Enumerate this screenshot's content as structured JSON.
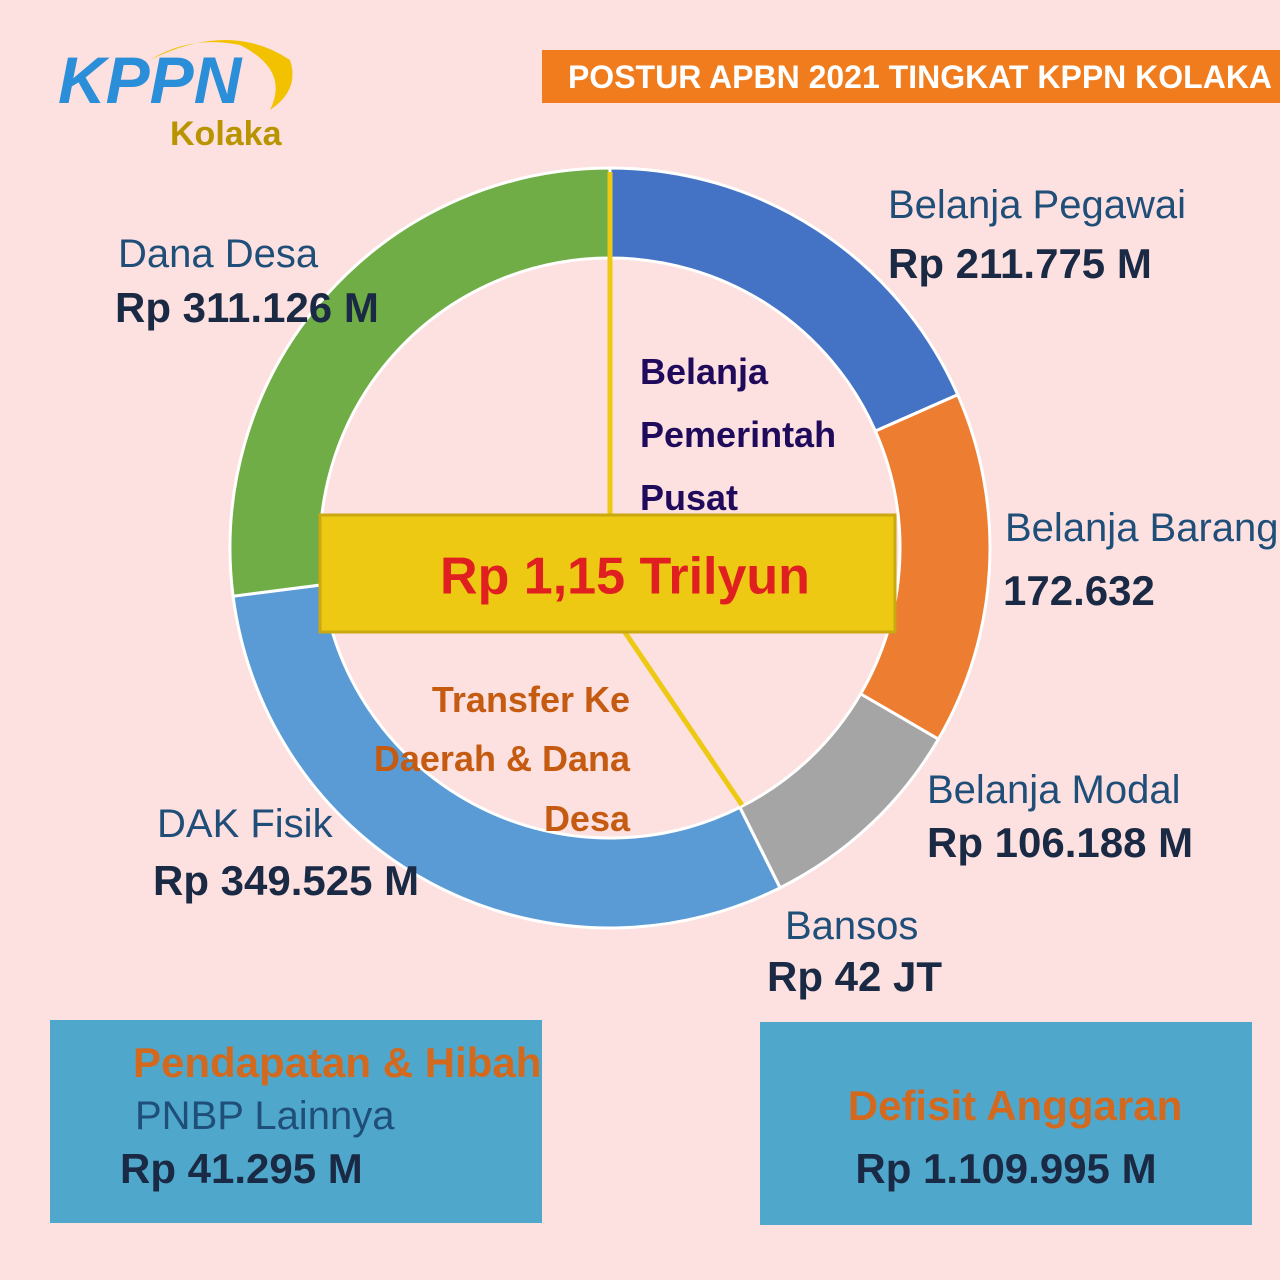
{
  "chart_data": {
    "type": "pie",
    "donut": true,
    "title": "POSTUR APBN 2021 TINGKAT KPPN KOLAKA",
    "center_label": "Rp 1,15 Trilyun",
    "categories": [
      "Belanja Pegawai",
      "Belanja Barang",
      "Belanja Modal",
      "Bansos",
      "DAK Fisik",
      "Dana Desa"
    ],
    "values": [
      211775,
      172632,
      106188,
      42,
      349525,
      311126
    ],
    "value_labels": [
      "Rp 211.775 M",
      "172.632",
      "Rp 106.188 M",
      "Rp 42 JT",
      "Rp 349.525 M",
      "Rp 311.126 M"
    ],
    "colors": [
      "#4472c4",
      "#ed7d31",
      "#a5a5a5",
      "#ffffff",
      "#5b9bd5",
      "#70ad47"
    ],
    "group_labels": [
      "Belanja Pemerintah Pusat",
      "Transfer Ke Daerah & Dana Desa"
    ]
  },
  "logo": {
    "name": "KPPN",
    "office": "Kolaka"
  },
  "boxes": [
    {
      "heading": "Pendapatan & Hibah",
      "label": "PNBP Lainnya",
      "value_label": "Rp 41.295 M"
    },
    {
      "heading": "Defisit Anggaran",
      "value_label": "Rp 1.109.995 M"
    }
  ]
}
